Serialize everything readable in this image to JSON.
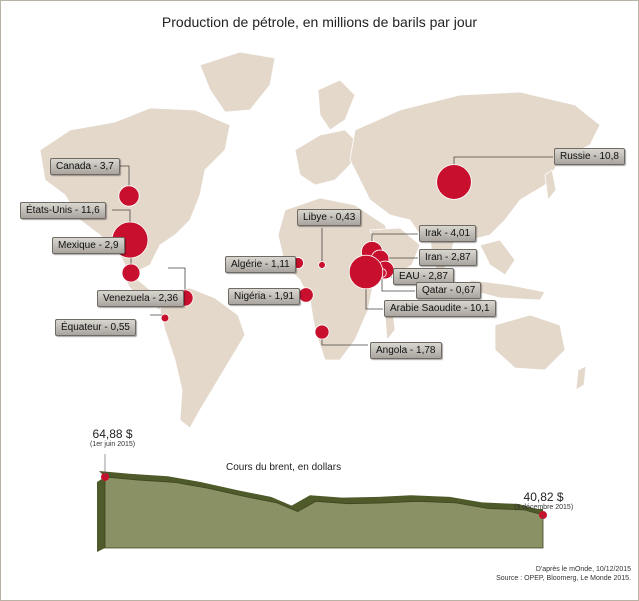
{
  "title": "Production de pétrole, en millions de barils par jour",
  "colors": {
    "land": "#e4d8cb",
    "bubble": "#c8102e",
    "curve_fill": "#8a9164",
    "curve_side": "#4f5a2a"
  },
  "producers": [
    {
      "name": "Canada - 3,7",
      "value": 3.7
    },
    {
      "name": "États-Unis - 11,6",
      "value": 11.6
    },
    {
      "name": "Mexique - 2,9",
      "value": 2.9
    },
    {
      "name": "Venezuela - 2,36",
      "value": 2.36
    },
    {
      "name": "Équateur - 0,55",
      "value": 0.55
    },
    {
      "name": "Libye - 0,43",
      "value": 0.43
    },
    {
      "name": "Algérie - 1,11",
      "value": 1.11
    },
    {
      "name": "Nigéria - 1,91",
      "value": 1.91
    },
    {
      "name": "Angola - 1,78",
      "value": 1.78
    },
    {
      "name": "Irak - 4,01",
      "value": 4.01
    },
    {
      "name": "Iran - 2,87",
      "value": 2.87
    },
    {
      "name": "EAU - 2,87",
      "value": 2.87
    },
    {
      "name": "Qatar - 0,67",
      "value": 0.67
    },
    {
      "name": "Arabie Saoudite - 10,1",
      "value": 10.1
    },
    {
      "name": "Russie - 10,8",
      "value": 10.8
    }
  ],
  "chart_data": {
    "type": "area",
    "title": "Cours du brent, en dollars",
    "start": {
      "value": "64,88 $",
      "date": "(1er juin 2015)"
    },
    "end": {
      "value": "40,82 $",
      "date": "(9 décembre 2015)"
    },
    "x": [
      "2015-06-01",
      "2015-06-15",
      "2015-07-01",
      "2015-07-15",
      "2015-08-01",
      "2015-08-15",
      "2015-08-24",
      "2015-09-01",
      "2015-09-15",
      "2015-10-01",
      "2015-10-15",
      "2015-11-01",
      "2015-11-15",
      "2015-12-01",
      "2015-12-09"
    ],
    "values": [
      64.88,
      63.0,
      61.5,
      58.0,
      52.5,
      48.5,
      43.0,
      49.5,
      48.0,
      48.5,
      49.5,
      48.5,
      45.0,
      44.0,
      40.82
    ]
  },
  "source": {
    "line1": "D'après le mOnde, 10/12/2015",
    "line2": "Source : OPEP, Bloomerg, Le Monde 2015."
  }
}
